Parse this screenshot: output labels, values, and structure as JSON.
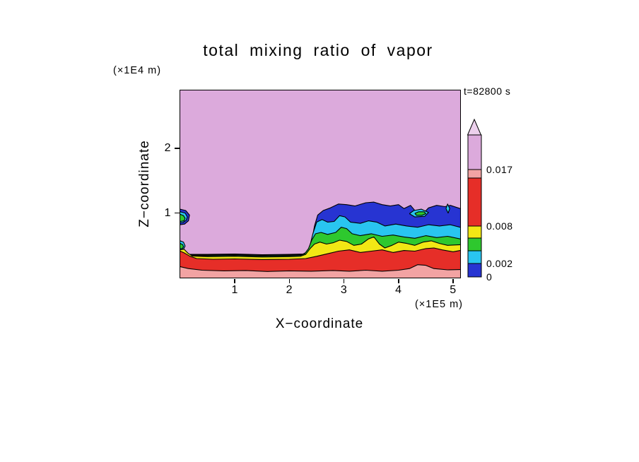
{
  "chart_data": {
    "type": "filled_contour",
    "title": "total mixing ratio of vapor",
    "time_label": "t=82800 s",
    "x_axis": {
      "label": "X−coordinate",
      "unit": "(×1E5 m)",
      "range": [
        0,
        5.13
      ],
      "ticks": [
        1,
        2,
        3,
        4,
        5
      ]
    },
    "z_axis": {
      "label": "Z−coordinate",
      "unit": "(×1E4 m)",
      "range": [
        0,
        2.9
      ],
      "ticks": [
        1,
        2
      ]
    },
    "levels_labeled": [
      "0",
      "0.002",
      "0.008",
      "0.017"
    ],
    "palette": {
      "plum": "#dcaadc",
      "salmon": "#f2a3a3",
      "red": "#e62e28",
      "yellow": "#f2e715",
      "green": "#2ec82e",
      "cyan": "#29c5f0",
      "blue": "#2734d2",
      "line": "#000000"
    },
    "bins": [
      {
        "color": "blue",
        "range": [
          0,
          0.002
        ]
      },
      {
        "color": "cyan",
        "range": [
          0.002,
          0.004
        ]
      },
      {
        "color": "green",
        "range": [
          0.004,
          0.006
        ]
      },
      {
        "color": "yellow",
        "range": [
          0.006,
          0.008
        ]
      },
      {
        "color": "red",
        "range": [
          0.008,
          0.017
        ]
      },
      {
        "color": "salmon",
        "range": [
          0.017,
          0.019
        ]
      },
      {
        "color": "plum",
        "range": [
          0.019,
          0.022
        ]
      }
    ],
    "background_bin": "plum",
    "colorbar": {
      "arrow_color": "#ecd0ec",
      "segments_top_to_bottom": [
        {
          "color": "plum",
          "h": 49
        },
        {
          "color": "salmon",
          "h": 12,
          "label_top": "0.017"
        },
        {
          "color": "red",
          "h": 68
        },
        {
          "color": "yellow",
          "h": 17,
          "label_top": "0.008"
        },
        {
          "color": "green",
          "h": 18
        },
        {
          "color": "cyan",
          "h": 18
        },
        {
          "color": "blue",
          "h": 19,
          "label_top": "0.002",
          "label_bottom": "0"
        }
      ]
    },
    "regions": [
      {
        "name": "band-blue",
        "color": "blue",
        "close": "bottom",
        "points": [
          [
            0,
            0.36
          ],
          [
            0.5,
            0.36
          ],
          [
            1.0,
            0.365
          ],
          [
            1.5,
            0.355
          ],
          [
            2.0,
            0.36
          ],
          [
            2.25,
            0.365
          ],
          [
            2.33,
            0.4
          ],
          [
            2.4,
            0.52
          ],
          [
            2.46,
            0.8
          ],
          [
            2.52,
            0.97
          ],
          [
            2.62,
            1.04
          ],
          [
            2.75,
            1.08
          ],
          [
            2.9,
            1.14
          ],
          [
            3.05,
            1.13
          ],
          [
            3.2,
            1.11
          ],
          [
            3.4,
            1.16
          ],
          [
            3.55,
            1.17
          ],
          [
            3.7,
            1.13
          ],
          [
            3.85,
            1.11
          ],
          [
            4.0,
            1.13
          ],
          [
            4.1,
            1.07
          ],
          [
            4.22,
            1.12
          ],
          [
            4.32,
            1.02
          ],
          [
            4.45,
            0.99
          ],
          [
            4.55,
            1.08
          ],
          [
            4.7,
            1.12
          ],
          [
            4.85,
            1.1
          ],
          [
            4.95,
            1.12
          ],
          [
            5.13,
            1.07
          ]
        ]
      },
      {
        "name": "band-cyan",
        "color": "cyan",
        "close": "bottom",
        "points": [
          [
            0,
            0.35
          ],
          [
            0.5,
            0.35
          ],
          [
            1.0,
            0.355
          ],
          [
            1.5,
            0.345
          ],
          [
            2.0,
            0.35
          ],
          [
            2.22,
            0.355
          ],
          [
            2.3,
            0.38
          ],
          [
            2.37,
            0.47
          ],
          [
            2.43,
            0.68
          ],
          [
            2.5,
            0.86
          ],
          [
            2.6,
            0.9
          ],
          [
            2.7,
            0.86
          ],
          [
            2.82,
            0.87
          ],
          [
            2.92,
            0.96
          ],
          [
            3.02,
            0.94
          ],
          [
            3.12,
            0.86
          ],
          [
            3.3,
            0.84
          ],
          [
            3.45,
            0.88
          ],
          [
            3.6,
            0.86
          ],
          [
            3.75,
            0.8
          ],
          [
            3.95,
            0.83
          ],
          [
            4.15,
            0.8
          ],
          [
            4.35,
            0.78
          ],
          [
            4.55,
            0.82
          ],
          [
            4.75,
            0.8
          ],
          [
            4.95,
            0.82
          ],
          [
            5.13,
            0.78
          ]
        ]
      },
      {
        "name": "band-green",
        "color": "green",
        "close": "bottom",
        "points": [
          [
            0,
            0.34
          ],
          [
            0.5,
            0.34
          ],
          [
            1.0,
            0.345
          ],
          [
            1.5,
            0.335
          ],
          [
            2.0,
            0.34
          ],
          [
            2.2,
            0.345
          ],
          [
            2.28,
            0.37
          ],
          [
            2.35,
            0.45
          ],
          [
            2.41,
            0.58
          ],
          [
            2.48,
            0.68
          ],
          [
            2.58,
            0.7
          ],
          [
            2.7,
            0.67
          ],
          [
            2.85,
            0.7
          ],
          [
            2.95,
            0.78
          ],
          [
            3.05,
            0.76
          ],
          [
            3.15,
            0.68
          ],
          [
            3.3,
            0.65
          ],
          [
            3.5,
            0.68
          ],
          [
            3.7,
            0.64
          ],
          [
            3.9,
            0.66
          ],
          [
            4.1,
            0.63
          ],
          [
            4.3,
            0.61
          ],
          [
            4.5,
            0.65
          ],
          [
            4.7,
            0.62
          ],
          [
            4.9,
            0.64
          ],
          [
            5.13,
            0.6
          ]
        ]
      },
      {
        "name": "band-yellow",
        "color": "yellow",
        "close": "bottom",
        "points": [
          [
            0,
            0.46
          ],
          [
            0.07,
            0.44
          ],
          [
            0.14,
            0.38
          ],
          [
            0.22,
            0.335
          ],
          [
            0.5,
            0.325
          ],
          [
            1.0,
            0.33
          ],
          [
            1.5,
            0.32
          ],
          [
            2.0,
            0.325
          ],
          [
            2.2,
            0.33
          ],
          [
            2.3,
            0.36
          ],
          [
            2.38,
            0.45
          ],
          [
            2.46,
            0.52
          ],
          [
            2.56,
            0.55
          ],
          [
            2.68,
            0.52
          ],
          [
            2.8,
            0.54
          ],
          [
            2.92,
            0.58
          ],
          [
            3.05,
            0.56
          ],
          [
            3.18,
            0.5
          ],
          [
            3.32,
            0.52
          ],
          [
            3.45,
            0.6
          ],
          [
            3.55,
            0.63
          ],
          [
            3.65,
            0.52
          ],
          [
            3.75,
            0.46
          ],
          [
            3.88,
            0.5
          ],
          [
            4.0,
            0.55
          ],
          [
            4.15,
            0.53
          ],
          [
            4.3,
            0.5
          ],
          [
            4.45,
            0.55
          ],
          [
            4.6,
            0.57
          ],
          [
            4.75,
            0.53
          ],
          [
            4.9,
            0.5
          ],
          [
            5.13,
            0.51
          ]
        ]
      },
      {
        "name": "band-red",
        "color": "red",
        "close": "bottom",
        "points": [
          [
            0,
            0.41
          ],
          [
            0.08,
            0.38
          ],
          [
            0.18,
            0.33
          ],
          [
            0.3,
            0.295
          ],
          [
            0.6,
            0.285
          ],
          [
            1.0,
            0.29
          ],
          [
            1.5,
            0.28
          ],
          [
            2.0,
            0.285
          ],
          [
            2.3,
            0.295
          ],
          [
            2.5,
            0.33
          ],
          [
            2.7,
            0.37
          ],
          [
            2.9,
            0.41
          ],
          [
            3.1,
            0.43
          ],
          [
            3.3,
            0.39
          ],
          [
            3.5,
            0.41
          ],
          [
            3.7,
            0.43
          ],
          [
            3.9,
            0.39
          ],
          [
            4.1,
            0.42
          ],
          [
            4.3,
            0.41
          ],
          [
            4.5,
            0.45
          ],
          [
            4.65,
            0.46
          ],
          [
            4.8,
            0.43
          ],
          [
            5.0,
            0.4
          ],
          [
            5.13,
            0.42
          ]
        ]
      },
      {
        "name": "band-salmon",
        "color": "salmon",
        "close": "bottom",
        "points": [
          [
            0,
            0.17
          ],
          [
            0.15,
            0.14
          ],
          [
            0.4,
            0.115
          ],
          [
            0.8,
            0.105
          ],
          [
            1.2,
            0.11
          ],
          [
            1.6,
            0.095
          ],
          [
            2.0,
            0.105
          ],
          [
            2.4,
            0.1
          ],
          [
            2.8,
            0.11
          ],
          [
            3.1,
            0.1
          ],
          [
            3.4,
            0.115
          ],
          [
            3.7,
            0.1
          ],
          [
            4.0,
            0.115
          ],
          [
            4.2,
            0.14
          ],
          [
            4.35,
            0.2
          ],
          [
            4.5,
            0.19
          ],
          [
            4.65,
            0.14
          ],
          [
            4.9,
            0.12
          ],
          [
            5.13,
            0.125
          ]
        ]
      },
      {
        "name": "left-blob-blue",
        "color": "blue",
        "close": "loop",
        "points": [
          [
            0,
            1.06
          ],
          [
            0.1,
            1.04
          ],
          [
            0.17,
            0.97
          ],
          [
            0.15,
            0.88
          ],
          [
            0.08,
            0.83
          ],
          [
            0,
            0.82
          ]
        ]
      },
      {
        "name": "left-blob-cyan",
        "color": "cyan",
        "close": "loop",
        "points": [
          [
            0,
            1.02
          ],
          [
            0.09,
            1.0
          ],
          [
            0.13,
            0.94
          ],
          [
            0.11,
            0.89
          ],
          [
            0.05,
            0.855
          ],
          [
            0,
            0.85
          ]
        ]
      },
      {
        "name": "left-blob-green",
        "color": "green",
        "close": "loop",
        "points": [
          [
            0,
            0.98
          ],
          [
            0.06,
            0.96
          ],
          [
            0.09,
            0.92
          ],
          [
            0.07,
            0.88
          ],
          [
            0,
            0.87
          ]
        ]
      },
      {
        "name": "left-curl-cyan",
        "color": "cyan",
        "close": "loop",
        "points": [
          [
            0,
            0.57
          ],
          [
            0.06,
            0.55
          ],
          [
            0.09,
            0.49
          ],
          [
            0.06,
            0.44
          ],
          [
            0,
            0.43
          ]
        ]
      },
      {
        "name": "left-curl-green",
        "color": "green",
        "close": "loop",
        "points": [
          [
            0,
            0.53
          ],
          [
            0.045,
            0.51
          ],
          [
            0.06,
            0.48
          ],
          [
            0.04,
            0.45
          ],
          [
            0,
            0.45
          ]
        ]
      },
      {
        "name": "inclusion-cyan",
        "color": "cyan",
        "close": "loop",
        "points": [
          [
            4.2,
            0.99
          ],
          [
            4.28,
            1.04
          ],
          [
            4.42,
            1.06
          ],
          [
            4.55,
            1.01
          ],
          [
            4.48,
            0.95
          ],
          [
            4.3,
            0.94
          ],
          [
            4.2,
            0.99
          ]
        ]
      },
      {
        "name": "inclusion-green",
        "color": "green",
        "close": "loop",
        "points": [
          [
            4.3,
            0.995
          ],
          [
            4.37,
            1.02
          ],
          [
            4.47,
            1.02
          ],
          [
            4.5,
            0.99
          ],
          [
            4.43,
            0.965
          ],
          [
            4.33,
            0.965
          ],
          [
            4.3,
            0.995
          ]
        ]
      },
      {
        "name": "streak-cyan",
        "color": "cyan",
        "close": "loop",
        "points": [
          [
            4.87,
            1.07
          ],
          [
            4.9,
            1.14
          ],
          [
            4.94,
            1.07
          ],
          [
            4.91,
            1.0
          ],
          [
            4.87,
            1.07
          ]
        ]
      }
    ]
  }
}
